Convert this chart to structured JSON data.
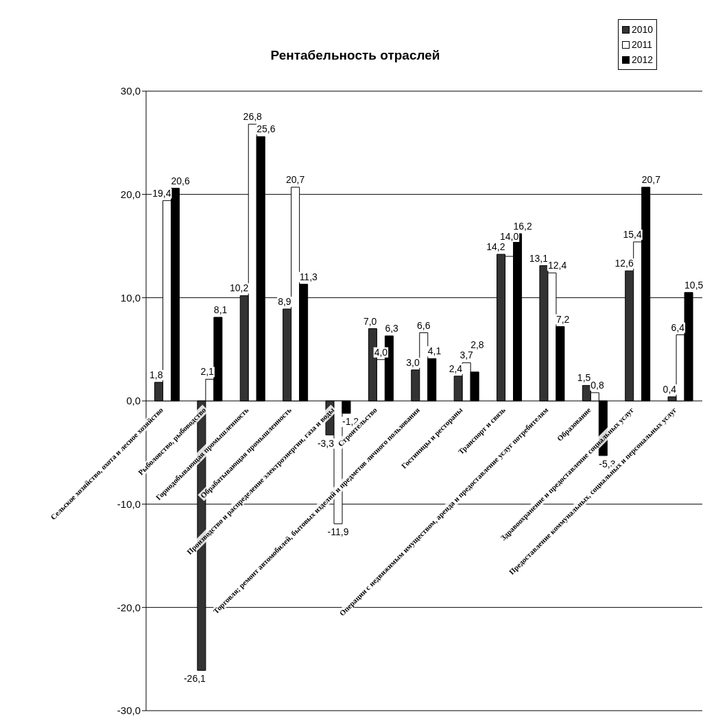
{
  "chart_data": {
    "type": "bar",
    "title": "Рентабельность отраслей",
    "categories": [
      "Сельское хозяйство, охота и лесное хозяйство",
      "Рыболовство, рыбоводство",
      "Горнодобывающая промышленность",
      "Обрабатывающая промышленность",
      "Производство и распределение электроэнергии, газа и воды",
      "Строительство",
      "Торговля; ремонт автомобилей, бытовых изделий и предметов личного пользования",
      "Гостиницы и рестораны",
      "Транспорт и связь",
      "Операции с недвижимым имуществом, аренда и предоставление услуг потребителям",
      "Образование",
      "Здравоохранение и предоставление социальных услуг",
      "Предоставление коммунальных, социальных и персональных услуг"
    ],
    "series": [
      {
        "name": "2010",
        "color": "#333333",
        "values": [
          1.8,
          -26.1,
          10.2,
          8.9,
          -3.3,
          7.0,
          3.0,
          2.4,
          14.2,
          13.1,
          1.5,
          12.6,
          0.4
        ],
        "value_labels": [
          "1,8",
          "-26,1",
          "10,2",
          "8,9",
          "-3,3",
          "7,0",
          "3,0",
          "2,4",
          "14,2",
          "13,1",
          "1,5",
          "12,6",
          "0,4"
        ]
      },
      {
        "name": "2011",
        "color": "#ffffff",
        "values": [
          19.4,
          2.1,
          26.8,
          20.7,
          -11.9,
          4.0,
          6.6,
          3.7,
          14.0,
          12.4,
          0.8,
          15.4,
          6.4
        ],
        "value_labels": [
          "19,4",
          "2,1",
          "26,8",
          "20,7",
          "-11,9",
          "4,0",
          "6,6",
          "3,7",
          "14,0",
          "12,4",
          "0,8",
          "15,4",
          "6,4"
        ]
      },
      {
        "name": "2012",
        "color": "#000000",
        "values": [
          20.6,
          8.1,
          25.6,
          11.3,
          -1.2,
          6.3,
          4.1,
          2.8,
          16.2,
          7.2,
          -5.3,
          20.7,
          10.5
        ],
        "value_labels": [
          "20,6",
          "8,1",
          "25,6",
          "11,3",
          "-1,2",
          "6,3",
          "4,1",
          "2,8",
          "16,2",
          "7,2",
          "-5,3",
          "20,7",
          "10,5"
        ]
      }
    ],
    "ylim": [
      -30,
      30
    ],
    "yticks": [
      {
        "value": -30,
        "label": "-30,0"
      },
      {
        "value": -20,
        "label": "-20,0"
      },
      {
        "value": -10,
        "label": "-10,0"
      },
      {
        "value": 0,
        "label": "0,0"
      },
      {
        "value": 10,
        "label": "10,0"
      },
      {
        "value": 20,
        "label": "20,0"
      },
      {
        "value": 30,
        "label": "30,0"
      }
    ],
    "grid": "y",
    "legend": "top right"
  }
}
